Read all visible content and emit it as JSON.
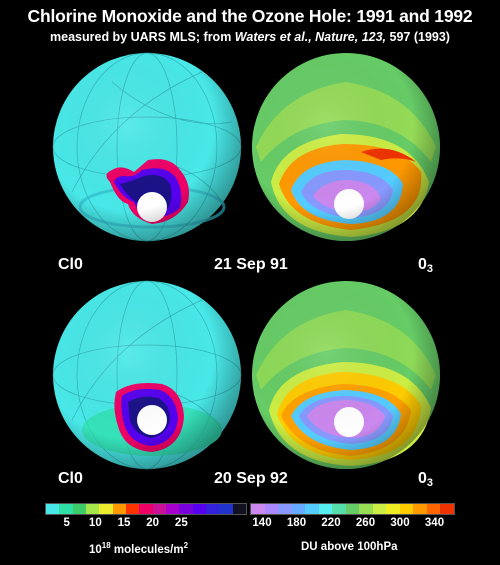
{
  "title": "Chlorine Monoxide and the Ozone Hole: 1991 and 1992",
  "subtitle": {
    "prefix": "measured by UARS MLS; from ",
    "citation": "Waters et al., Nature, 123,",
    "suffix": " 597 (1993)"
  },
  "panels": [
    {
      "date": "21 Sep 91",
      "left_label": "Cl0",
      "right_label_base": "0",
      "right_label_sub": "3"
    },
    {
      "date": "20 Sep 92",
      "left_label": "Cl0",
      "right_label_base": "0",
      "right_label_sub": "3"
    }
  ],
  "clo_colorbar": {
    "colors": [
      "#49e8e8",
      "#2ee0a6",
      "#3dcc6a",
      "#a6e84a",
      "#ecec2e",
      "#ff9900",
      "#ff3300",
      "#ee0066",
      "#cc1199",
      "#aa00cc",
      "#7700dd",
      "#5500ee",
      "#3322dd",
      "#2233cc",
      "#111122"
    ],
    "ticks": [
      "5",
      "10",
      "15",
      "20",
      "25"
    ],
    "unit_base": "10",
    "unit_exp": "18",
    "unit_mid": " molecules/m",
    "unit_exp2": "2"
  },
  "o3_colorbar": {
    "colors": [
      "#cc88ee",
      "#aa88ff",
      "#8899ff",
      "#66aaff",
      "#55ccff",
      "#55eeee",
      "#55ddaa",
      "#66cc66",
      "#99dd55",
      "#ccee44",
      "#eeee22",
      "#ffcc00",
      "#ff9900",
      "#ff6600",
      "#ee3300"
    ],
    "ticks": [
      "140",
      "180",
      "220",
      "260",
      "300",
      "340"
    ],
    "unit": "DU above 100hPa"
  },
  "colors": {
    "background": "#000000",
    "clo_base": "#49e8e8",
    "o3_base": "#66cc66"
  }
}
